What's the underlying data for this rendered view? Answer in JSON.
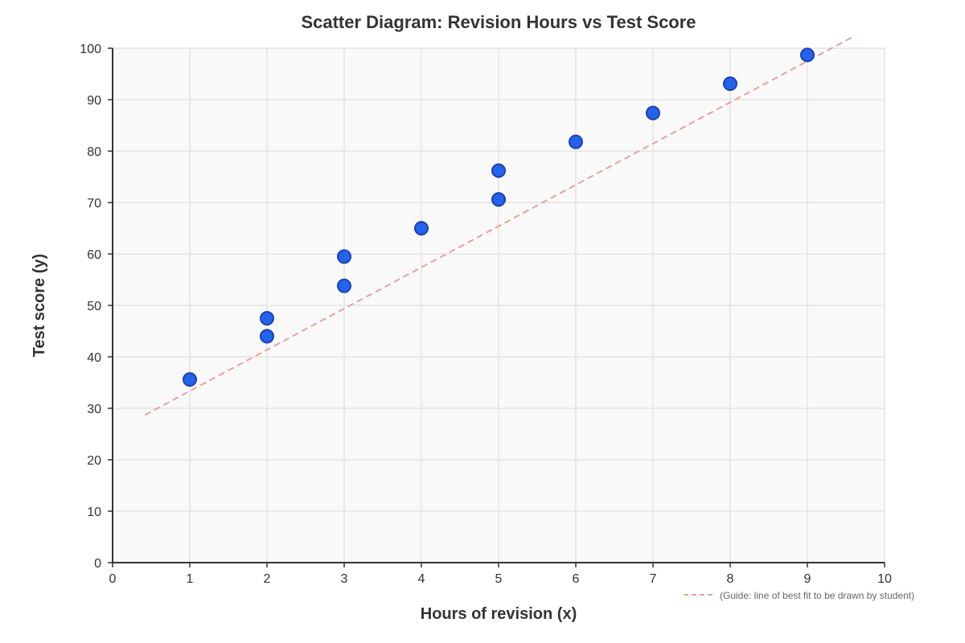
{
  "chart_data": {
    "type": "scatter",
    "title": "Scatter Diagram: Revision Hours vs Test Score",
    "xlabel": "Hours of revision (x)",
    "ylabel": "Test score (y)",
    "xlim": [
      0,
      10
    ],
    "ylim": [
      0,
      100
    ],
    "x_ticks": [
      "0",
      "1",
      "2",
      "3",
      "4",
      "5",
      "6",
      "7",
      "8",
      "9",
      "10"
    ],
    "y_ticks": [
      "0",
      "10",
      "20",
      "30",
      "40",
      "50",
      "60",
      "70",
      "80",
      "90",
      "100"
    ],
    "grid": true,
    "points": [
      {
        "x": 1,
        "y": 35.6
      },
      {
        "x": 2,
        "y": 44
      },
      {
        "x": 2,
        "y": 47.5
      },
      {
        "x": 3,
        "y": 53.8
      },
      {
        "x": 3,
        "y": 59.5
      },
      {
        "x": 4,
        "y": 65
      },
      {
        "x": 5,
        "y": 70.6
      },
      {
        "x": 5,
        "y": 76.2
      },
      {
        "x": 6,
        "y": 81.8
      },
      {
        "x": 7,
        "y": 87.4
      },
      {
        "x": 8,
        "y": 93.1
      },
      {
        "x": 9,
        "y": 98.7
      }
    ],
    "guide_line": {
      "label": "(Guide: line of best fit to be drawn by student)",
      "x1": 0.42,
      "y1": 28.7,
      "x2": 9.6,
      "y2": 102.3
    },
    "legend_position": "bottom-right",
    "colors": {
      "point_fill": "#2563eb",
      "point_stroke": "#1e40af",
      "guide_line": "#e8a29a",
      "plot_background": "#f9f9f9",
      "grid": "#e4e4e4",
      "axis": "#333333"
    }
  }
}
